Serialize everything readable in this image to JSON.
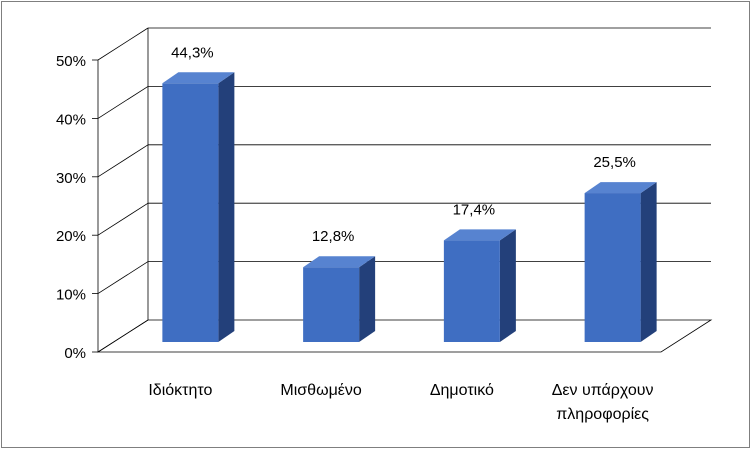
{
  "chart_data": {
    "type": "bar",
    "title": "",
    "xlabel": "",
    "ylabel": "",
    "categories": [
      "Ιδιόκτητο",
      "Μισθωμένο",
      "Δημοτικό",
      "Δεν υπάρχουν πληροφορίες"
    ],
    "category_lines": [
      [
        "Ιδιόκτητο"
      ],
      [
        "Μισθωμένο"
      ],
      [
        "Δημοτικό"
      ],
      [
        "Δεν υπάρχουν",
        "πληροφορίες"
      ]
    ],
    "values": [
      44.3,
      12.8,
      17.4,
      25.5
    ],
    "value_labels": [
      "44,3%",
      "12,8%",
      "17,4%",
      "25,5%"
    ],
    "ylim": [
      0,
      50
    ],
    "y_ticks": [
      0,
      10,
      20,
      30,
      40,
      50
    ],
    "y_tick_labels": [
      "0%",
      "10%",
      "20%",
      "30%",
      "40%",
      "50%"
    ],
    "grid": true,
    "legend": "none",
    "colors": {
      "bar_front": "#3f6ec2",
      "bar_side": "#23407a",
      "bar_top": "#5783d0",
      "grid": "#000000",
      "frame": "#7f7f7f"
    }
  }
}
